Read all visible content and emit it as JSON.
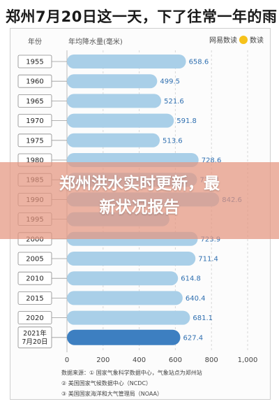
{
  "title": "郑州7月20日这一天，下了往常一年的雨",
  "header": {
    "year_col": "年份",
    "value_col": "年均降水量(毫米)",
    "brand_left": "网易数读",
    "brand_right": "数读"
  },
  "chart_data": {
    "type": "bar",
    "orientation": "horizontal",
    "categories": [
      "1955",
      "1960",
      "1965",
      "1970",
      "1975",
      "1980",
      "1985",
      "1990",
      "1995",
      "2000",
      "2005",
      "2010",
      "2015",
      "2020",
      "2021年 7月20日"
    ],
    "values": [
      658.6,
      499.5,
      521.6,
      591.8,
      513.6,
      728.6,
      720.1,
      842.6,
      567.2,
      723.9,
      711.4,
      614.8,
      640.4,
      681.1,
      627.4
    ],
    "value_labels": [
      "658.6",
      "499.5",
      "521.6",
      "591.8",
      "513.6",
      "728.6",
      "720.1",
      "842.6",
      "",
      "723.9",
      "711.4",
      "614.8",
      "640.4",
      "681.1",
      "627.4"
    ],
    "highlight_index": 14,
    "bar_color": "#a9cfe8",
    "highlight_color": "#3d7fc1",
    "label_color": "#2f6fb0",
    "xlim": [
      0,
      1000
    ],
    "xticks": [
      "0",
      "200",
      "400",
      "600",
      "800",
      "1,000"
    ],
    "xtick_values": [
      0,
      200,
      400,
      600,
      800,
      1000
    ]
  },
  "sources": [
    "数据来源：① 国家气象科学数据中心，气象站点为郑州站",
    "② 美国国家气候数据中心（NCDC）",
    "③ 美国国家海洋和大气管理局（NOAA）"
  ],
  "overlay": {
    "line1": "郑州洪水实时更新，最",
    "line2": "新状况报告"
  }
}
